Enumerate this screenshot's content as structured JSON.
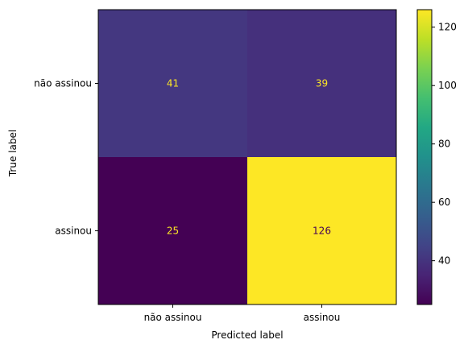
{
  "chart_data": {
    "type": "heatmap",
    "title": "",
    "xlabel": "Predicted label",
    "ylabel": "True label",
    "x_categories": [
      "não assinou",
      "assinou"
    ],
    "y_categories": [
      "não assinou",
      "assinou"
    ],
    "values": [
      [
        41,
        39
      ],
      [
        25,
        126
      ]
    ],
    "colormap": "viridis",
    "colorbar": {
      "range": [
        25,
        126
      ],
      "ticks": [
        40,
        60,
        80,
        100,
        120
      ]
    },
    "colors": {
      "low": "#440154",
      "high": "#fde725",
      "text_on_dark": "#fde725",
      "text_on_light": "#440154"
    }
  }
}
